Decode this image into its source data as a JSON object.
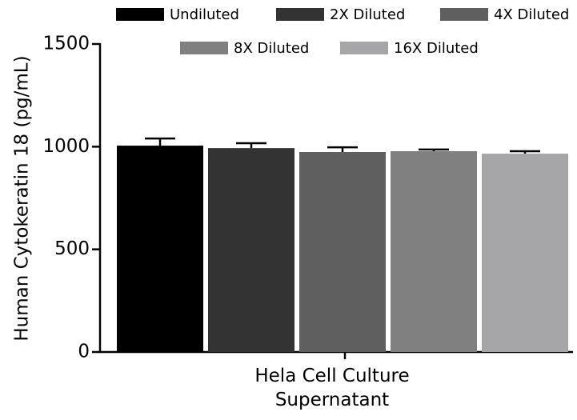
{
  "chart_data": {
    "type": "bar",
    "y_label": "Human Cytokeratin 18 (pg/mL)",
    "categories": [
      "Hela Cell Culture Supernatant"
    ],
    "series": [
      {
        "name": "Undiluted",
        "color": "#000000",
        "values": [
          1005
        ],
        "errors": [
          35
        ]
      },
      {
        "name": "2X Diluted",
        "color": "#333333",
        "values": [
          993
        ],
        "errors": [
          24
        ]
      },
      {
        "name": "4X Diluted",
        "color": "#5f5f5f",
        "values": [
          974
        ],
        "errors": [
          23
        ]
      },
      {
        "name": "8X Diluted",
        "color": "#808080",
        "values": [
          978
        ],
        "errors": [
          8
        ]
      },
      {
        "name": "16X Diluted",
        "color": "#a6a6a8",
        "values": [
          966
        ],
        "errors": [
          12
        ]
      }
    ],
    "ylim": [
      0,
      1500
    ],
    "yticks": [
      0,
      500,
      1000,
      1500
    ],
    "grid": false,
    "legend": "top"
  }
}
